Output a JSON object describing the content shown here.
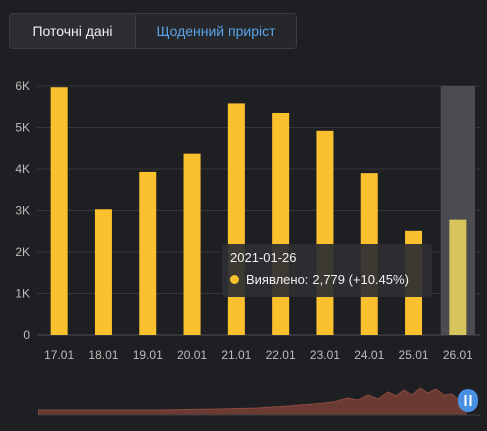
{
  "tabs": {
    "current_label": "Поточні дані",
    "daily_label": "Щоденний приріст"
  },
  "tooltip": {
    "date": "2021-01-26",
    "series_label": "Виявлено:",
    "value_text": "2,779 (+10.45%)"
  },
  "colors": {
    "bar": "#fbc02d",
    "bar_highlight": "#d8c45c",
    "accent": "#5aa3ea",
    "navigator_area": "#6b3a33",
    "navigator_handle": "#4a90e2"
  },
  "chart_data": {
    "type": "bar",
    "categories": [
      "17.01",
      "18.01",
      "19.01",
      "20.01",
      "21.01",
      "22.01",
      "23.01",
      "24.01",
      "25.01",
      "26.01"
    ],
    "series": [
      {
        "name": "Виявлено",
        "values": [
          5970,
          3030,
          3930,
          4370,
          5580,
          5350,
          4920,
          3900,
          2510,
          2779
        ]
      }
    ],
    "yticks": [
      "0",
      "1K",
      "2K",
      "3K",
      "4K",
      "5K",
      "6K"
    ],
    "ylim": [
      0,
      6000
    ],
    "highlight_index": 9,
    "grid": true
  }
}
